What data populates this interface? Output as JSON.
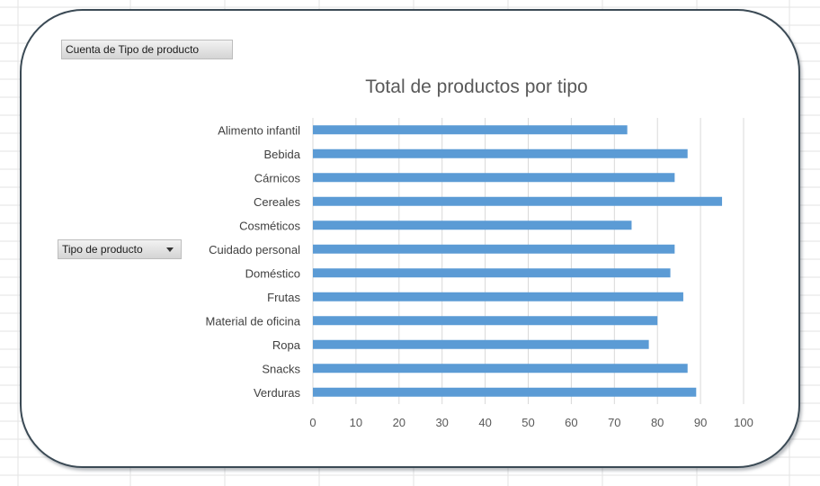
{
  "pivot_fields": {
    "value_field": "Cuenta de Tipo de producto",
    "axis_field": "Tipo de producto"
  },
  "colors": {
    "bar": "#5b9bd5",
    "gridline": "#d9d9d9",
    "text": "#595959",
    "card_border": "#3b4a55",
    "sheet_grid": "#e3e3e3"
  },
  "chart_data": {
    "type": "bar",
    "orientation": "horizontal",
    "title": "Total de productos por tipo",
    "categories": [
      "Alimento infantil",
      "Bebida",
      "Cárnicos",
      "Cereales",
      "Cosméticos",
      "Cuidado personal",
      "Doméstico",
      "Frutas",
      "Material de oficina",
      "Ropa",
      "Snacks",
      "Verduras"
    ],
    "values": [
      73,
      87,
      84,
      95,
      74,
      84,
      83,
      86,
      80,
      78,
      87,
      89
    ],
    "xlim": [
      0,
      100
    ],
    "xticks": [
      0,
      10,
      20,
      30,
      40,
      50,
      60,
      70,
      80,
      90,
      100
    ],
    "grid": true,
    "legend": "none"
  }
}
